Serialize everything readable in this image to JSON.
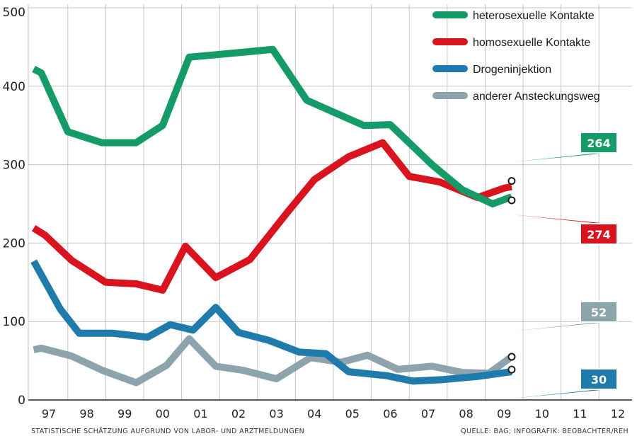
{
  "chart_data": {
    "type": "line",
    "categories": [
      "97",
      "98",
      "99",
      "00",
      "01",
      "02",
      "03",
      "04",
      "05",
      "06",
      "07",
      "08",
      "09",
      "10",
      "11",
      "12"
    ],
    "yticks": [
      0,
      100,
      200,
      300,
      400,
      500
    ],
    "ylim": [
      0,
      500
    ],
    "grid": true,
    "legend_position": "top-right",
    "series": [
      {
        "name": "heterosexuelle Kontakte",
        "color": "#159b67",
        "points": [
          [
            -0.4,
            422
          ],
          [
            -0.2,
            417
          ],
          [
            0.5,
            342
          ],
          [
            1.4,
            328
          ],
          [
            2.3,
            328
          ],
          [
            3.0,
            350
          ],
          [
            3.7,
            437
          ],
          [
            5.5,
            445
          ],
          [
            5.9,
            447
          ],
          [
            6.8,
            382
          ],
          [
            8.3,
            350
          ],
          [
            9.0,
            351
          ],
          [
            10.1,
            300
          ],
          [
            10.9,
            268
          ],
          [
            11.7,
            250
          ],
          [
            12.2,
            259
          ]
        ],
        "end_value": 264
      },
      {
        "name": "homosexuelle Kontakte",
        "color": "#d9141f",
        "points": [
          [
            -0.4,
            219
          ],
          [
            -0.1,
            210
          ],
          [
            0.6,
            178
          ],
          [
            1.5,
            150
          ],
          [
            2.3,
            148
          ],
          [
            3.0,
            140
          ],
          [
            3.6,
            196
          ],
          [
            4.4,
            156
          ],
          [
            5.3,
            179
          ],
          [
            6.3,
            240
          ],
          [
            7.0,
            281
          ],
          [
            7.9,
            310
          ],
          [
            8.8,
            328
          ],
          [
            9.5,
            285
          ],
          [
            10.3,
            278
          ],
          [
            11.3,
            258
          ],
          [
            12.0,
            270
          ],
          [
            12.2,
            272
          ]
        ],
        "end_value": 274
      },
      {
        "name": "Drogeninjektion",
        "color": "#1f7bab",
        "points": [
          [
            -0.4,
            177
          ],
          [
            0.3,
            116
          ],
          [
            0.8,
            85
          ],
          [
            1.7,
            85
          ],
          [
            2.6,
            80
          ],
          [
            3.2,
            96
          ],
          [
            3.8,
            89
          ],
          [
            4.4,
            118
          ],
          [
            5.0,
            86
          ],
          [
            5.8,
            76
          ],
          [
            6.6,
            61
          ],
          [
            7.3,
            59
          ],
          [
            7.9,
            36
          ],
          [
            8.9,
            31
          ],
          [
            9.6,
            24
          ],
          [
            10.4,
            26
          ],
          [
            11.3,
            30
          ],
          [
            12.2,
            36
          ]
        ],
        "end_value": 30
      },
      {
        "name": "anderer Ansteckungsweg",
        "color": "#8ea4ac",
        "points": [
          [
            -0.4,
            64
          ],
          [
            -0.2,
            66
          ],
          [
            0.6,
            56
          ],
          [
            1.4,
            38
          ],
          [
            2.3,
            22
          ],
          [
            3.1,
            44
          ],
          [
            3.7,
            78
          ],
          [
            4.4,
            43
          ],
          [
            5.1,
            38
          ],
          [
            6.0,
            27
          ],
          [
            6.9,
            54
          ],
          [
            7.7,
            48
          ],
          [
            8.4,
            57
          ],
          [
            9.2,
            39
          ],
          [
            10.1,
            43
          ],
          [
            10.9,
            35
          ],
          [
            11.6,
            34
          ],
          [
            12.2,
            55
          ]
        ],
        "end_value": 52
      }
    ]
  },
  "footnote_left": "STATISTISCHE SCHÄTZUNG AUFGRUND VON LABOR- UND ARZTMELDUNGEN",
  "footnote_right": "QUELLE: BAG; INFOGRAFIK: BEOBACHTER/REH"
}
